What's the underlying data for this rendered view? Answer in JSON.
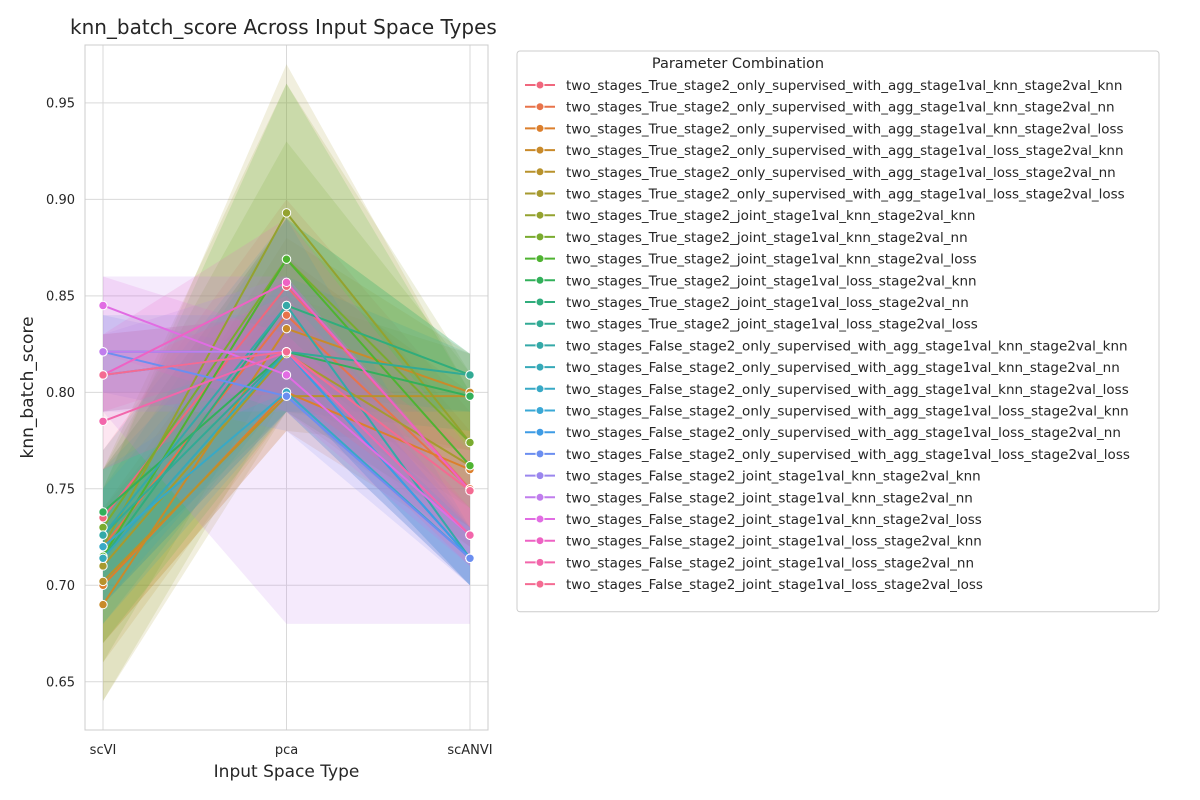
{
  "chart_data": {
    "type": "line",
    "title": "knn_batch_score Across Input Space Types",
    "xlabel": "Input Space Type",
    "ylabel": "knn_batch_score",
    "categories": [
      "scVI",
      "pca",
      "scANVI"
    ],
    "ylim": [
      0.625,
      0.98
    ],
    "yticks": [
      0.65,
      0.7,
      0.75,
      0.8,
      0.85,
      0.9,
      0.95
    ],
    "ytick_labels": [
      "0.65",
      "0.70",
      "0.75",
      "0.80",
      "0.85",
      "0.90",
      "0.95"
    ],
    "grid": true,
    "legend_title": "Parameter Combination",
    "legend_position": "right-outside",
    "series": [
      {
        "name": "two_stages_True_stage2_only_supervised_with_agg_stage1val_knn_stage2val_knn",
        "color": "#f0677d",
        "values": [
          0.735,
          0.855,
          0.75
        ],
        "band": [
          [
            0.7,
            0.77
          ],
          [
            0.8,
            0.9
          ],
          [
            0.72,
            0.79
          ]
        ]
      },
      {
        "name": "two_stages_True_stage2_only_supervised_with_agg_stage1val_knn_stage2val_nn",
        "color": "#e8734a",
        "values": [
          0.72,
          0.84,
          0.75
        ],
        "band": [
          [
            0.69,
            0.76
          ],
          [
            0.79,
            0.89
          ],
          [
            0.72,
            0.78
          ]
        ]
      },
      {
        "name": "two_stages_True_stage2_only_supervised_with_agg_stage1val_knn_stage2val_loss",
        "color": "#dc7f2c",
        "values": [
          0.7,
          0.8,
          0.76
        ],
        "band": [
          [
            0.67,
            0.74
          ],
          [
            0.78,
            0.87
          ],
          [
            0.72,
            0.8
          ]
        ]
      },
      {
        "name": "two_stages_True_stage2_only_supervised_with_agg_stage1val_loss_stage2val_knn",
        "color": "#c98a2a",
        "values": [
          0.69,
          0.833,
          0.8
        ],
        "band": [
          [
            0.66,
            0.73
          ],
          [
            0.79,
            0.88
          ],
          [
            0.77,
            0.82
          ]
        ]
      },
      {
        "name": "two_stages_True_stage2_only_supervised_with_agg_stage1val_loss_stage2val_nn",
        "color": "#b8922c",
        "values": [
          0.702,
          0.798,
          0.798
        ],
        "band": [
          [
            0.67,
            0.74
          ],
          [
            0.78,
            0.85
          ],
          [
            0.77,
            0.82
          ]
        ]
      },
      {
        "name": "two_stages_True_stage2_only_supervised_with_agg_stage1val_loss_stage2val_loss",
        "color": "#a69a2f",
        "values": [
          0.71,
          0.82,
          0.762
        ],
        "band": [
          [
            0.64,
            0.75
          ],
          [
            0.79,
            0.97
          ],
          [
            0.73,
            0.8
          ]
        ]
      },
      {
        "name": "two_stages_True_stage2_joint_stage1val_knn_stage2val_knn",
        "color": "#94a22f",
        "values": [
          0.72,
          0.893,
          0.774
        ],
        "band": [
          [
            0.64,
            0.76
          ],
          [
            0.8,
            0.96
          ],
          [
            0.74,
            0.81
          ]
        ]
      },
      {
        "name": "two_stages_True_stage2_joint_stage1val_knn_stage2val_nn",
        "color": "#7aab2f",
        "values": [
          0.73,
          0.869,
          0.774
        ],
        "band": [
          [
            0.66,
            0.76
          ],
          [
            0.82,
            0.93
          ],
          [
            0.74,
            0.81
          ]
        ]
      },
      {
        "name": "two_stages_True_stage2_joint_stage1val_knn_stage2val_loss",
        "color": "#4fb331",
        "values": [
          0.715,
          0.869,
          0.762
        ],
        "band": [
          [
            0.67,
            0.75
          ],
          [
            0.79,
            0.96
          ],
          [
            0.73,
            0.8
          ]
        ]
      },
      {
        "name": "two_stages_True_stage2_joint_stage1val_loss_stage2val_knn",
        "color": "#32b05a",
        "values": [
          0.738,
          0.821,
          0.798
        ],
        "band": [
          [
            0.7,
            0.76
          ],
          [
            0.79,
            0.89
          ],
          [
            0.78,
            0.82
          ]
        ]
      },
      {
        "name": "two_stages_True_stage2_joint_stage1val_loss_stage2val_nn",
        "color": "#30ad7c",
        "values": [
          0.714,
          0.845,
          0.809
        ],
        "band": [
          [
            0.68,
            0.75
          ],
          [
            0.8,
            0.89
          ],
          [
            0.79,
            0.82
          ]
        ]
      },
      {
        "name": "two_stages_True_stage2_joint_stage1val_loss_stage2val_loss",
        "color": "#32aa95",
        "values": [
          0.726,
          0.821,
          0.809
        ],
        "band": [
          [
            0.69,
            0.76
          ],
          [
            0.79,
            0.86
          ],
          [
            0.79,
            0.82
          ]
        ]
      },
      {
        "name": "two_stages_False_stage2_only_supervised_with_agg_stage1val_knn_stage2val_knn",
        "color": "#34a9a8",
        "values": [
          0.726,
          0.845,
          0.714
        ],
        "band": [
          [
            0.69,
            0.77
          ],
          [
            0.8,
            0.89
          ],
          [
            0.7,
            0.73
          ]
        ]
      },
      {
        "name": "two_stages_False_stage2_only_supervised_with_agg_stage1val_knn_stage2val_nn",
        "color": "#36a9b8",
        "values": [
          0.714,
          0.821,
          0.714
        ],
        "band": [
          [
            0.68,
            0.75
          ],
          [
            0.79,
            0.86
          ],
          [
            0.7,
            0.73
          ]
        ]
      },
      {
        "name": "two_stages_False_stage2_only_supervised_with_agg_stage1val_knn_stage2val_loss",
        "color": "#38a9c6",
        "values": [
          0.72,
          0.8,
          0.714
        ],
        "band": [
          [
            0.69,
            0.76
          ],
          [
            0.79,
            0.82
          ],
          [
            0.7,
            0.73
          ]
        ]
      },
      {
        "name": "two_stages_False_stage2_only_supervised_with_agg_stage1val_loss_stage2val_knn",
        "color": "#3aa8d6",
        "values": [
          0.821,
          0.821,
          0.714
        ],
        "band": [
          [
            0.8,
            0.84
          ],
          [
            0.8,
            0.84
          ],
          [
            0.7,
            0.73
          ]
        ]
      },
      {
        "name": "two_stages_False_stage2_only_supervised_with_agg_stage1val_loss_stage2val_nn",
        "color": "#3e9ce5",
        "values": [
          0.809,
          0.821,
          0.714
        ],
        "band": [
          [
            0.79,
            0.83
          ],
          [
            0.8,
            0.84
          ],
          [
            0.7,
            0.73
          ]
        ]
      },
      {
        "name": "two_stages_False_stage2_only_supervised_with_agg_stage1val_loss_stage2val_loss",
        "color": "#6b8ef0",
        "values": [
          0.821,
          0.798,
          0.714
        ],
        "band": [
          [
            0.8,
            0.84
          ],
          [
            0.78,
            0.82
          ],
          [
            0.7,
            0.73
          ]
        ]
      },
      {
        "name": "two_stages_False_stage2_joint_stage1val_knn_stage2val_knn",
        "color": "#9a86ee",
        "values": [
          0.809,
          0.821,
          0.726
        ],
        "band": [
          [
            0.79,
            0.83
          ],
          [
            0.79,
            0.86
          ],
          [
            0.7,
            0.75
          ]
        ]
      },
      {
        "name": "two_stages_False_stage2_joint_stage1val_knn_stage2val_nn",
        "color": "#c07ded",
        "values": [
          0.821,
          0.821,
          0.726
        ],
        "band": [
          [
            0.79,
            0.86
          ],
          [
            0.68,
            0.86
          ],
          [
            0.68,
            0.75
          ]
        ]
      },
      {
        "name": "two_stages_False_stage2_joint_stage1val_knn_stage2val_loss",
        "color": "#e16ce3",
        "values": [
          0.845,
          0.809,
          0.726
        ],
        "band": [
          [
            0.82,
            0.86
          ],
          [
            0.79,
            0.83
          ],
          [
            0.71,
            0.74
          ]
        ]
      },
      {
        "name": "two_stages_False_stage2_joint_stage1val_loss_stage2val_knn",
        "color": "#ee62c4",
        "values": [
          0.809,
          0.857,
          0.749
        ],
        "band": [
          [
            0.79,
            0.83
          ],
          [
            0.82,
            0.89
          ],
          [
            0.73,
            0.77
          ]
        ]
      },
      {
        "name": "two_stages_False_stage2_joint_stage1val_loss_stage2val_nn",
        "color": "#f266ab",
        "values": [
          0.785,
          0.821,
          0.726
        ],
        "band": [
          [
            0.76,
            0.81
          ],
          [
            0.8,
            0.85
          ],
          [
            0.71,
            0.74
          ]
        ]
      },
      {
        "name": "two_stages_False_stage2_joint_stage1val_loss_stage2val_loss",
        "color": "#f46b92",
        "values": [
          0.809,
          0.821,
          0.749
        ],
        "band": [
          [
            0.79,
            0.83
          ],
          [
            0.8,
            0.84
          ],
          [
            0.73,
            0.77
          ]
        ]
      }
    ]
  }
}
